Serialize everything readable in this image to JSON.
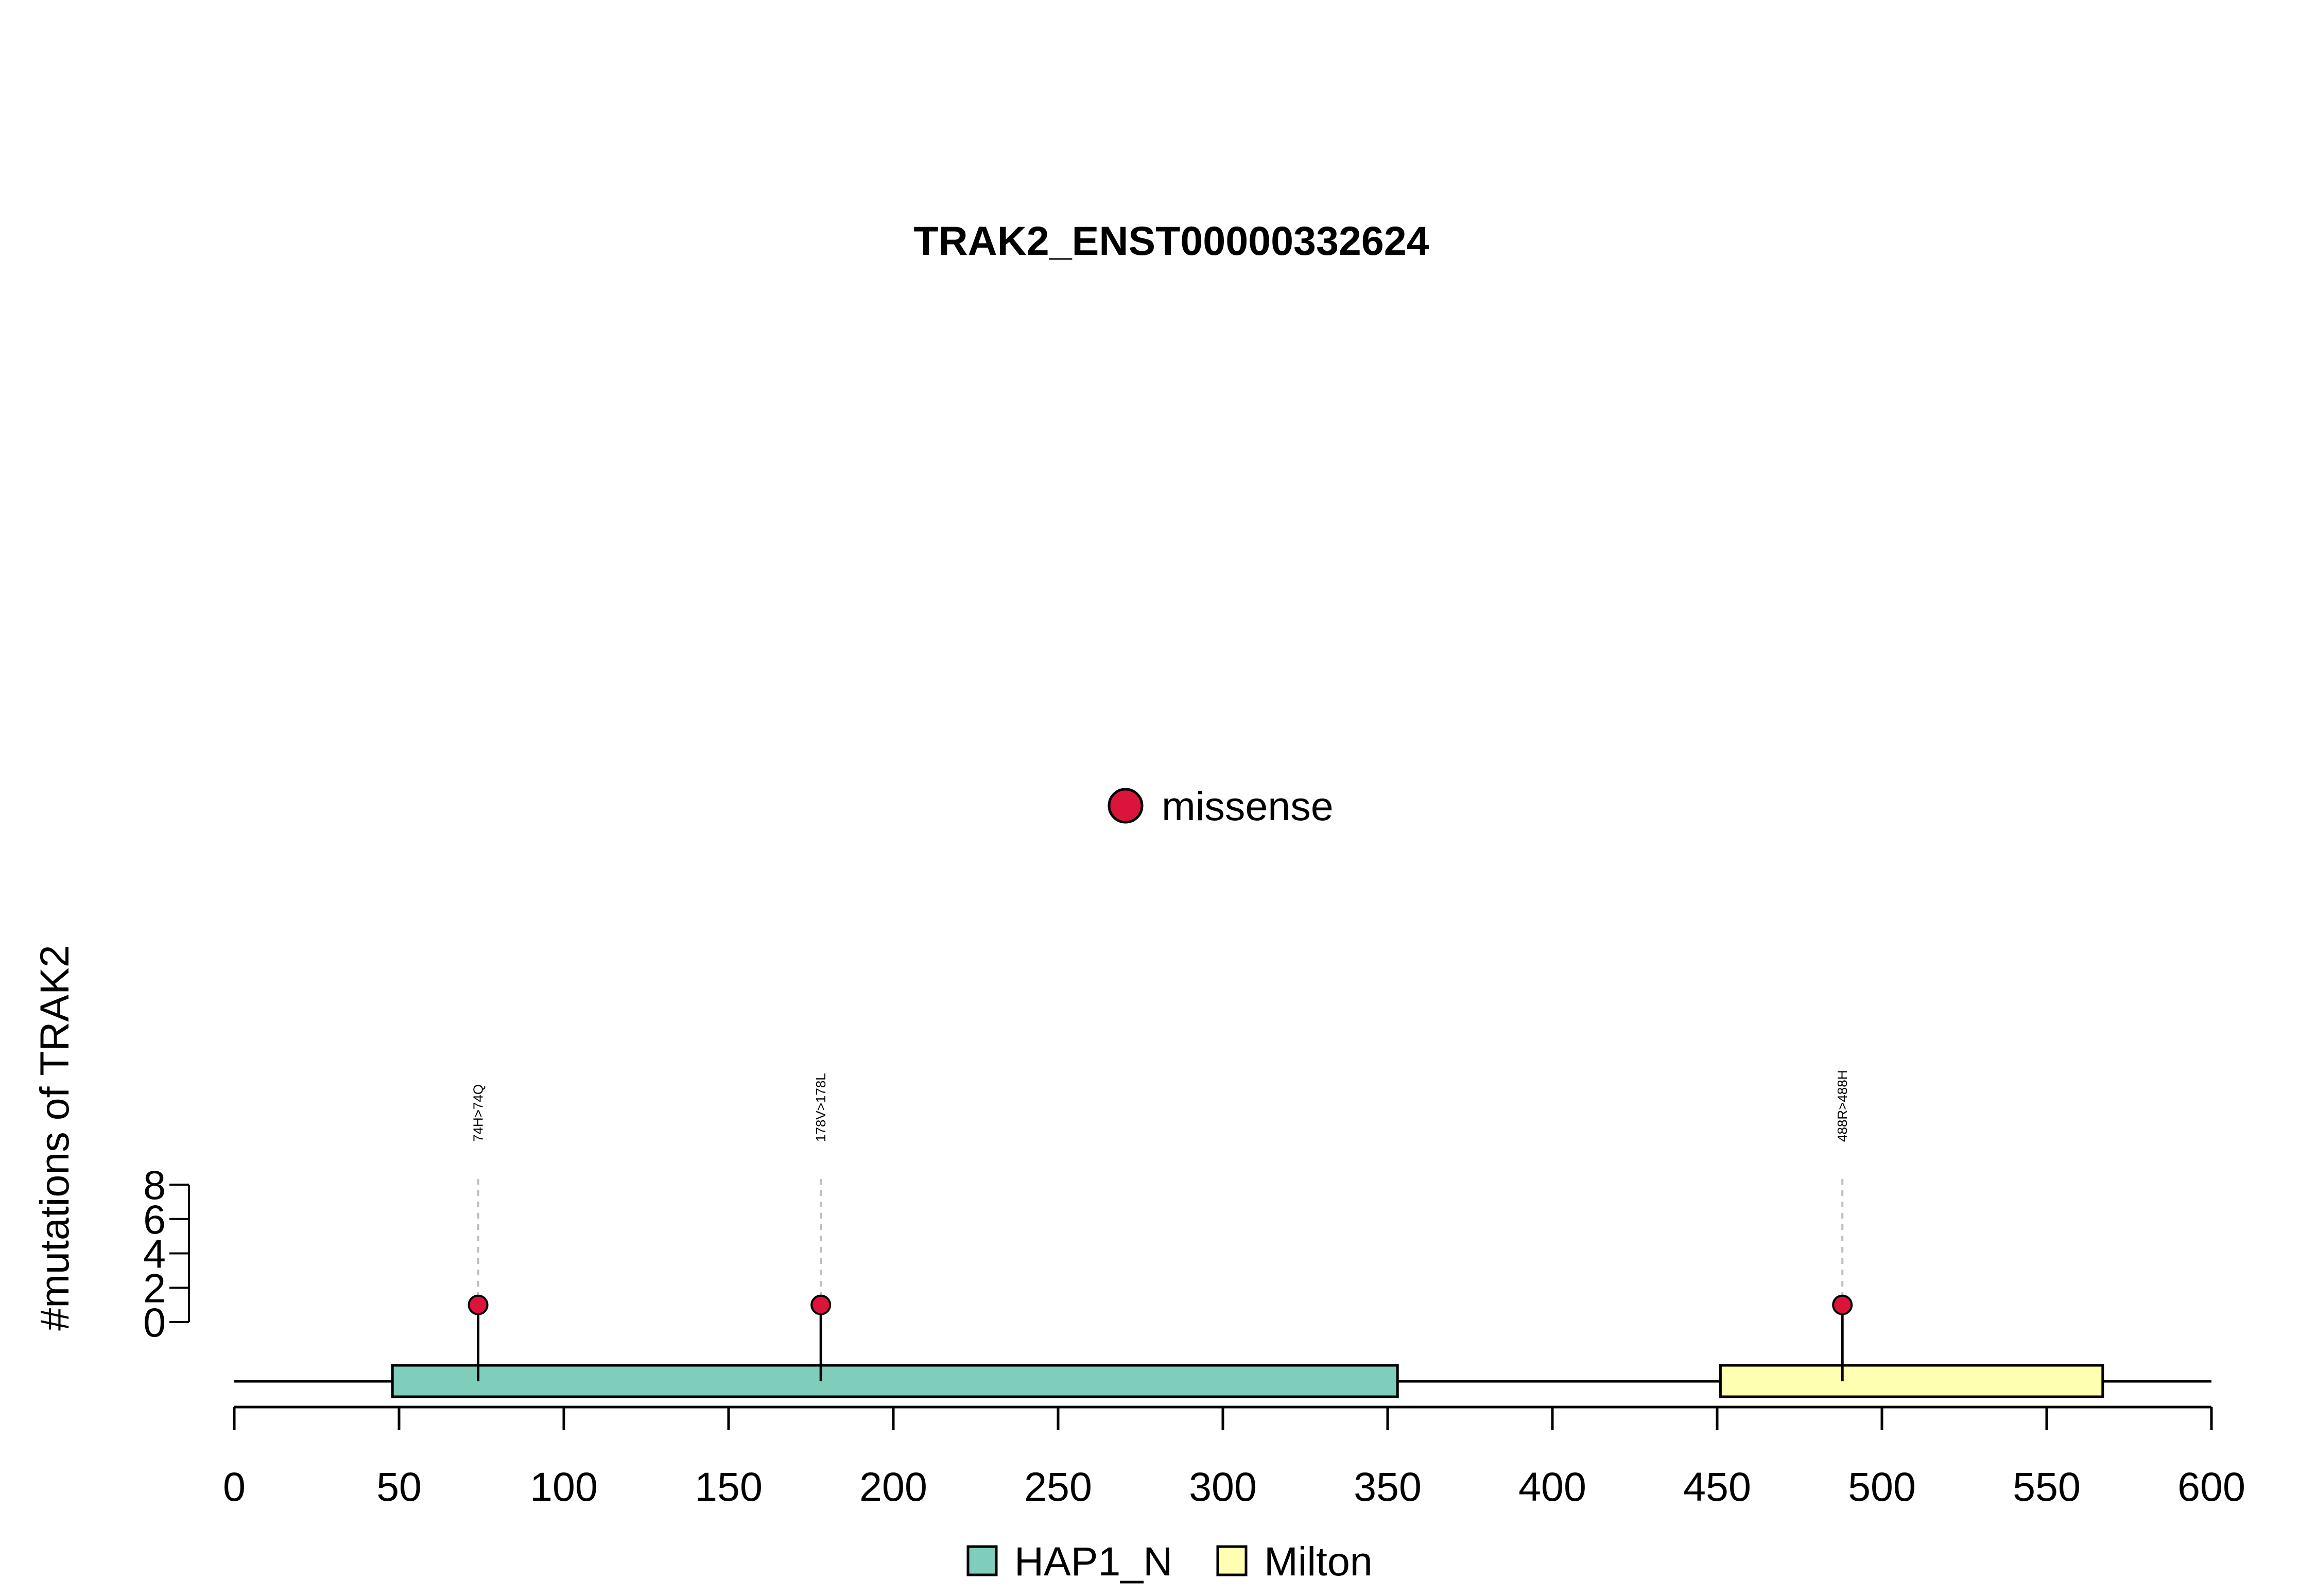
{
  "chart_data": {
    "type": "scatter",
    "title": "TRAK2_ENST00000332624",
    "ylabel": "#mutations of TRAK2",
    "xlabel": "",
    "xlim": [
      0,
      600
    ],
    "ylim": [
      0,
      8
    ],
    "x_ticks": [
      "0",
      "50",
      "100",
      "150",
      "200",
      "250",
      "300",
      "350",
      "400",
      "450",
      "500",
      "550",
      "600"
    ],
    "y_ticks": [
      "0",
      "2",
      "4",
      "6",
      "8"
    ],
    "protein_length": 600,
    "domains": [
      {
        "name": "HAP1_N",
        "start": 48,
        "end": 353,
        "color": "#7FCDBB"
      },
      {
        "name": "Milton",
        "start": 451,
        "end": 567,
        "color": "#FFFFB2"
      }
    ],
    "mutations": [
      {
        "position": 74,
        "count": 1,
        "label": "74H>74Q",
        "type": "missense"
      },
      {
        "position": 178,
        "count": 1,
        "label": "178V>178L",
        "type": "missense"
      },
      {
        "position": 488,
        "count": 1,
        "label": "488R>488H",
        "type": "missense"
      }
    ],
    "mutation_legend": [
      {
        "name": "missense",
        "color": "#DC143C"
      }
    ],
    "domain_legend": [
      {
        "name": "HAP1_N",
        "color": "#7FCDBB"
      },
      {
        "name": "Milton",
        "color": "#FFFFB2"
      }
    ],
    "grid": false
  }
}
